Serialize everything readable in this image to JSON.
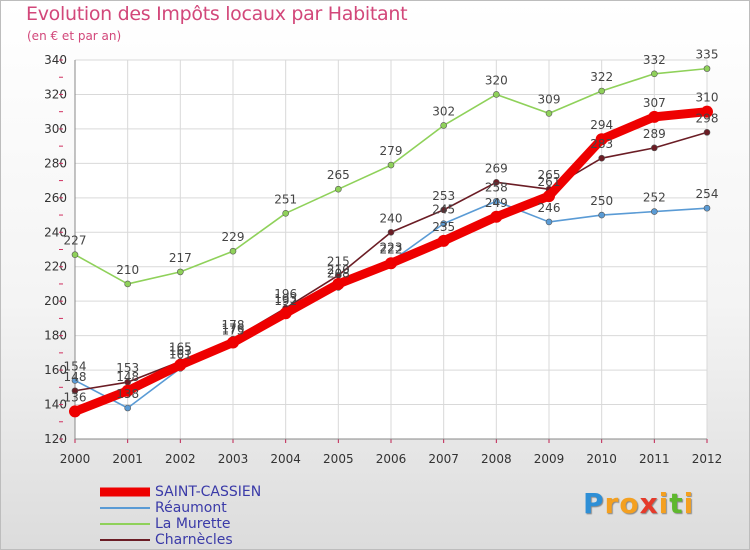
{
  "header": {
    "title": "Evolution des Impôts locaux par Habitant",
    "subtitle": "(en € et par an)"
  },
  "chart_data": {
    "type": "line",
    "x": [
      "2000",
      "2001",
      "2002",
      "2003",
      "2004",
      "2005",
      "2006",
      "2007",
      "2008",
      "2009",
      "2010",
      "2011",
      "2012"
    ],
    "ylim": [
      120,
      340
    ],
    "yticks": [
      120,
      140,
      160,
      180,
      200,
      220,
      240,
      260,
      280,
      300,
      320,
      340
    ],
    "series": [
      {
        "name": "SAINT-CASSIEN",
        "color": "#ee0000",
        "values": [
          136,
          148,
          163,
          176,
          193,
          210,
          222,
          235,
          249,
          261,
          294,
          307,
          310
        ]
      },
      {
        "name": "Réaumont",
        "color": "#5a9bd5",
        "values": [
          154,
          138,
          161,
          175,
          192,
          208,
          223,
          245,
          258,
          246,
          250,
          252,
          254
        ]
      },
      {
        "name": "La Murette",
        "color": "#8fd15a",
        "values": [
          227,
          210,
          217,
          229,
          251,
          265,
          279,
          302,
          320,
          309,
          322,
          332,
          335
        ]
      },
      {
        "name": "Charnècles",
        "color": "#6b1d25",
        "values": [
          148,
          153,
          165,
          178,
          196,
          215,
          240,
          253,
          269,
          265,
          283,
          289,
          298
        ]
      }
    ],
    "grid": true,
    "legend": "bottom-left"
  },
  "brand": {
    "letters": [
      "P",
      "r",
      "o",
      "x",
      "i",
      "t",
      "i"
    ],
    "colors": [
      "#2e8fd6",
      "#f4a020",
      "#f4a020",
      "#e53a2a",
      "#f4a020",
      "#5fb82e",
      "#f4a020"
    ]
  }
}
